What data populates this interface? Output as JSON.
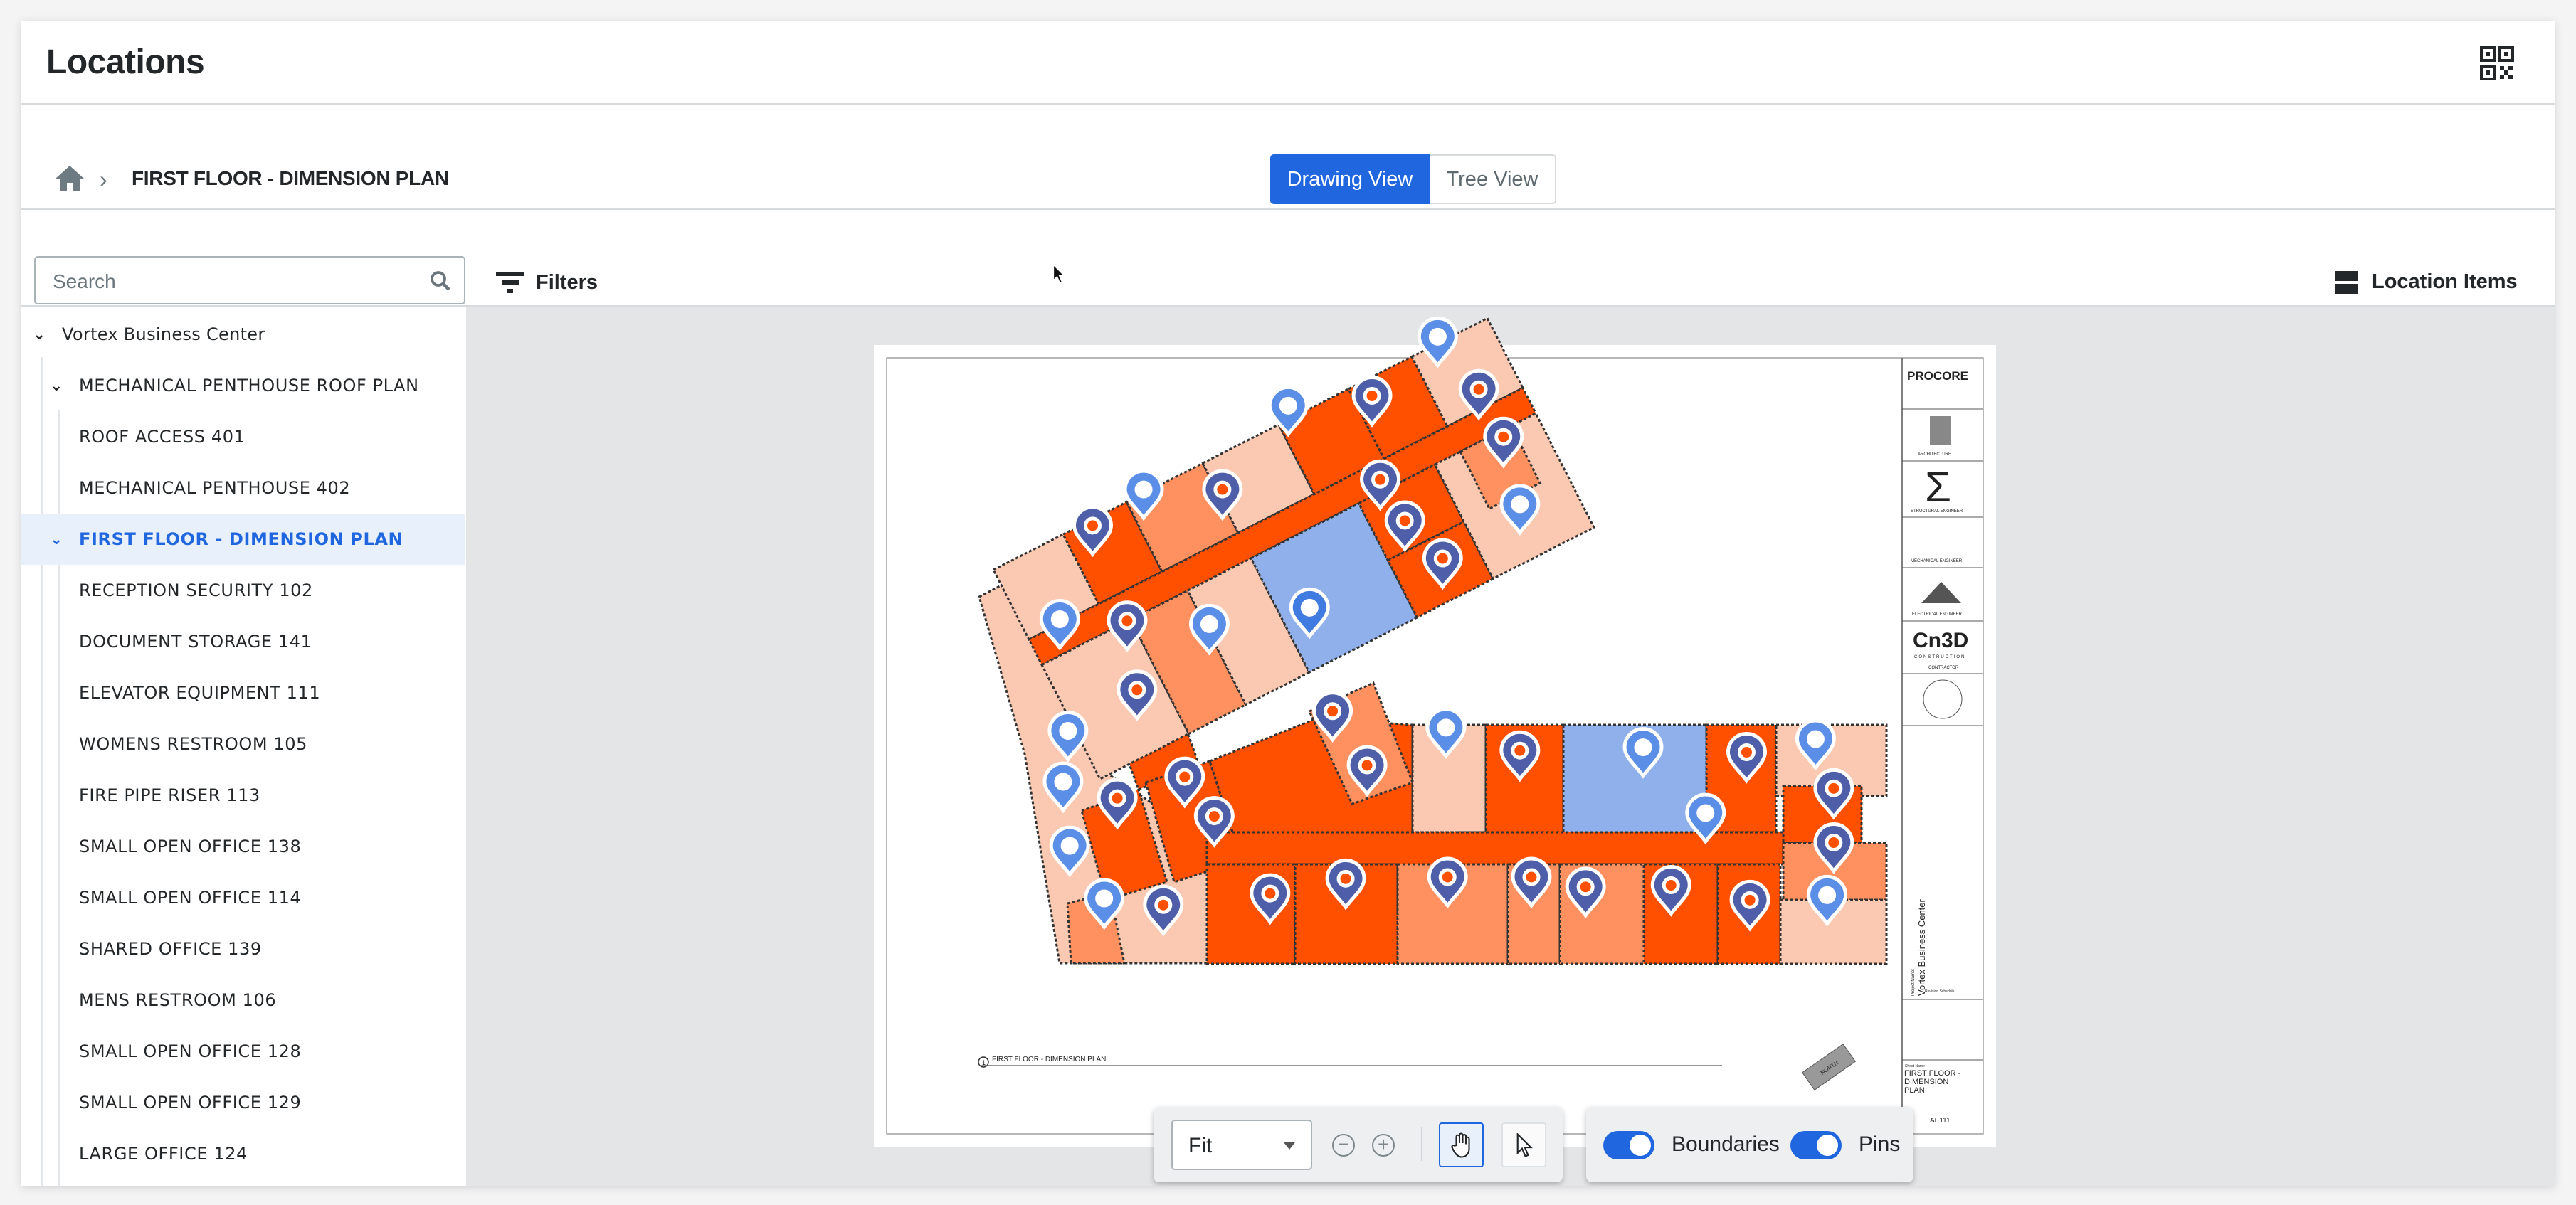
{
  "header": {
    "title": "Locations",
    "qr_icon": "qr-code-icon"
  },
  "breadcrumb": {
    "home_icon": "home-icon",
    "separator_icon": "chevron-right-icon",
    "current": "FIRST FLOOR - DIMENSION PLAN"
  },
  "view_toggle": {
    "options": [
      "Drawing View",
      "Tree View"
    ],
    "selected": "Drawing View"
  },
  "toolbar": {
    "search_placeholder": "Search",
    "filters_label": "Filters",
    "location_items_label": "Location Items"
  },
  "tree": {
    "root": "Vortex Business Center",
    "items": [
      {
        "label": "MECHANICAL PENTHOUSE ROOF PLAN",
        "expanded": true
      },
      {
        "label": "ROOF ACCESS 401"
      },
      {
        "label": "MECHANICAL PENTHOUSE 402"
      },
      {
        "label": "FIRST FLOOR - DIMENSION PLAN",
        "expanded": true,
        "selected": true
      },
      {
        "label": "RECEPTION SECURITY 102"
      },
      {
        "label": "DOCUMENT STORAGE 141"
      },
      {
        "label": "ELEVATOR EQUIPMENT 111"
      },
      {
        "label": "WOMENS RESTROOM 105"
      },
      {
        "label": "FIRE PIPE RISER 113"
      },
      {
        "label": "SMALL OPEN OFFICE 138"
      },
      {
        "label": "SMALL OPEN OFFICE 114"
      },
      {
        "label": "SHARED OFFICE 139"
      },
      {
        "label": "MENS RESTROOM 106"
      },
      {
        "label": "SMALL OPEN OFFICE 128"
      },
      {
        "label": "SMALL OPEN OFFICE 129"
      },
      {
        "label": "LARGE OFFICE 124"
      }
    ]
  },
  "drawing": {
    "title_block": {
      "logo": "PROCORE",
      "consultants": [
        "ARCHITECTURE",
        "STRUCTURAL ENGINEER",
        "MECHANICAL ENGINEER",
        "ELECTRICAL ENGINEER",
        "CONTRACTOR"
      ],
      "contractor_logo": "Cn3D",
      "contractor_logo_sub": "CONSTRUCTION",
      "project_name_label": "Project Name:",
      "project_name": "Vortex Business Center",
      "revision_label": "Revision Schedule",
      "sheet_name_label": "Sheet Name",
      "sheet_name": "FIRST FLOOR - DIMENSION PLAN",
      "sheet_number": "AE111"
    },
    "plan_title": "FIRST FLOOR - DIMENSION PLAN",
    "plan_number": "1",
    "north_label": "NORTH",
    "colors": {
      "dark_room": "#ff5000",
      "medium_room": "#ff9060",
      "light_room": "#fbc8b2",
      "selected_room": "#8fb0ea",
      "pin_light": "#5b8ee6",
      "pin_dark": "#4f5ea8",
      "accent": "#2066df"
    }
  },
  "viewer_controls": {
    "zoom_select": "Fit",
    "zoom_out_icon": "zoom-out-icon",
    "zoom_in_icon": "zoom-in-icon",
    "pan_tool_icon": "hand-icon",
    "select_tool_icon": "pointer-icon",
    "active_tool": "pan",
    "boundaries_label": "Boundaries",
    "boundaries_on": true,
    "pins_label": "Pins",
    "pins_on": true
  }
}
